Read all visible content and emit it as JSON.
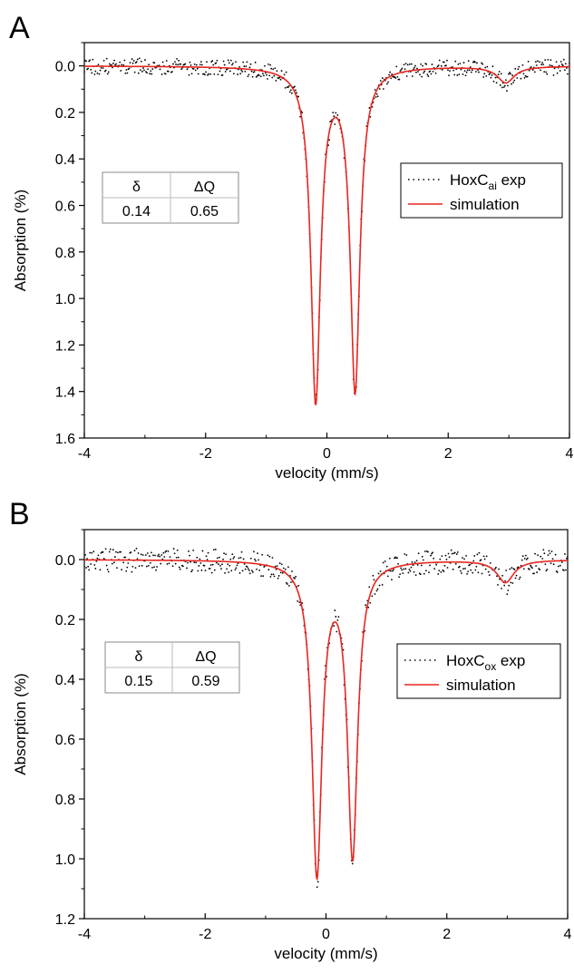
{
  "chart_data": [
    {
      "panel_label": "A",
      "type": "line",
      "xlabel": "velocity (mm/s)",
      "ylabel": "Absorption (%)",
      "xlim": [
        -4,
        4
      ],
      "ylim": [
        1.6,
        -0.1
      ],
      "y_inverted": true,
      "xticks": [
        -4,
        -2,
        0,
        2,
        4
      ],
      "xtick_labels": [
        "-4",
        "-2",
        "0",
        "2",
        "4"
      ],
      "yticks": [
        0.0,
        0.2,
        0.4,
        0.6,
        0.8,
        1.0,
        1.2,
        1.4,
        1.6
      ],
      "ytick_labels": [
        "0.0",
        "0.2",
        "0.4",
        "0.6",
        "0.8",
        "1.0",
        "1.2",
        "1.4",
        "1.6"
      ],
      "grid": false,
      "legend_position": "right, upper-middle",
      "legend": [
        {
          "text": "HoxC",
          "subscript": "ai",
          "suffix": " exp",
          "style": "dotted",
          "color": "#000000"
        },
        {
          "text": "simulation",
          "subscript": "",
          "suffix": "",
          "style": "solid",
          "color": "#e8261f"
        }
      ],
      "param_table": {
        "headers": [
          "δ",
          "ΔQ"
        ],
        "values": [
          "0.14",
          "0.65"
        ]
      },
      "simulation": {
        "doublet": [
          {
            "center": -0.185,
            "depth": 1.43,
            "hwhm": 0.095
          },
          {
            "center": 0.465,
            "depth": 1.38,
            "hwhm": 0.095
          }
        ],
        "small_feature": {
          "center": 2.95,
          "depth": 0.07,
          "hwhm": 0.17
        }
      },
      "experimental_noise_amplitude": 0.035
    },
    {
      "panel_label": "B",
      "type": "line",
      "xlabel": "velocity (mm/s)",
      "ylabel": "Absorption (%)",
      "xlim": [
        -4,
        4
      ],
      "ylim": [
        1.2,
        -0.1
      ],
      "y_inverted": true,
      "xticks": [
        -4,
        -2,
        0,
        2,
        4
      ],
      "xtick_labels": [
        "-4",
        "-2",
        "0",
        "2",
        "4"
      ],
      "yticks": [
        0.0,
        0.2,
        0.4,
        0.6,
        0.8,
        1.0,
        1.2
      ],
      "ytick_labels": [
        "0.0",
        "0.2",
        "0.4",
        "0.6",
        "0.8",
        "1.0",
        "1.2"
      ],
      "grid": false,
      "legend_position": "right, upper-middle",
      "legend": [
        {
          "text": "HoxC",
          "subscript": "ox",
          "suffix": " exp",
          "style": "dotted",
          "color": "#000000"
        },
        {
          "text": "simulation",
          "subscript": "",
          "suffix": "",
          "style": "solid",
          "color": "#e8261f"
        }
      ],
      "param_table": {
        "headers": [
          "δ",
          "ΔQ"
        ],
        "values": [
          "0.15",
          "0.59"
        ]
      },
      "simulation": {
        "doublet": [
          {
            "center": -0.15,
            "depth": 1.04,
            "hwhm": 0.1
          },
          {
            "center": 0.44,
            "depth": 0.98,
            "hwhm": 0.1
          }
        ],
        "small_feature": {
          "center": 2.97,
          "depth": 0.075,
          "hwhm": 0.17
        }
      },
      "experimental_noise_amplitude": 0.04
    }
  ]
}
